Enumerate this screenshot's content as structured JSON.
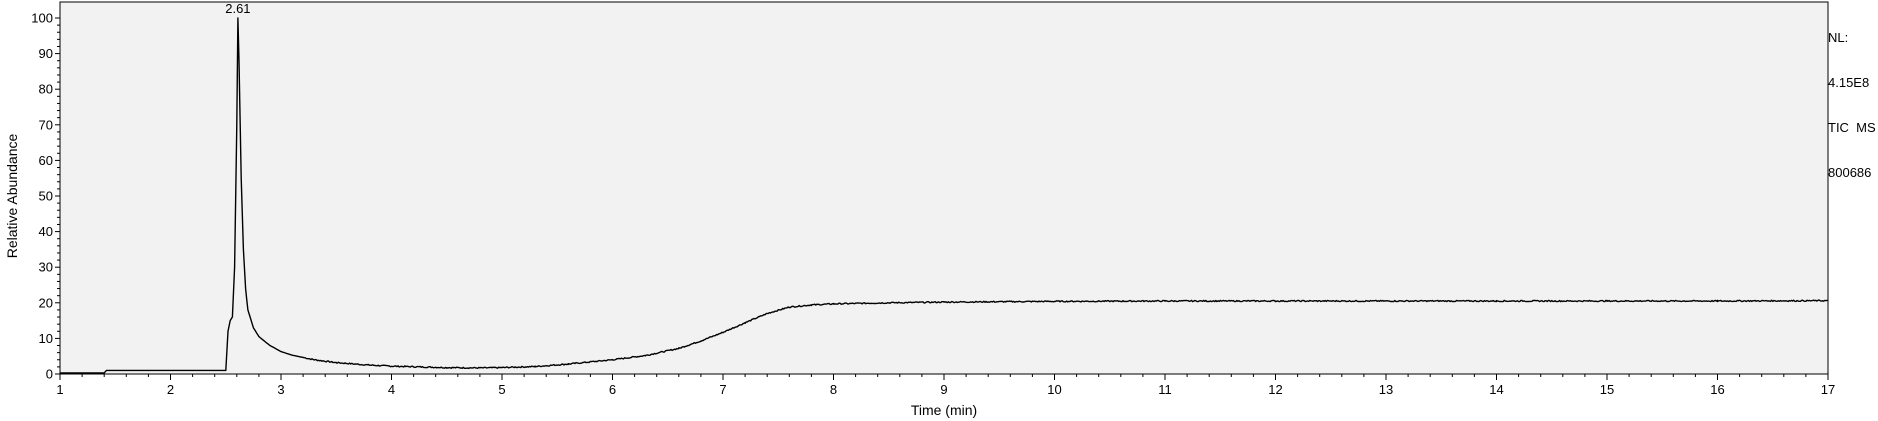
{
  "info": {
    "nl_label": "NL:",
    "nl_value": "4.15E8",
    "scan_filter": "TIC  MS",
    "sample": "800686"
  },
  "chart_data": {
    "type": "line",
    "title": "",
    "xlabel": "Time (min)",
    "ylabel": "Relative Abundance",
    "xlim": [
      1,
      17
    ],
    "ylim": [
      0,
      100
    ],
    "x_ticks": [
      1,
      2,
      3,
      4,
      5,
      6,
      7,
      8,
      9,
      10,
      11,
      12,
      13,
      14,
      15,
      16,
      17
    ],
    "y_ticks": [
      0,
      10,
      20,
      30,
      40,
      50,
      60,
      70,
      80,
      90,
      100
    ],
    "grid": false,
    "line_color": "#000000",
    "plot_background": "#f2f2f2",
    "annotations": [
      {
        "x": 2.61,
        "y": 100,
        "text": "2.61"
      }
    ],
    "series": [
      {
        "x": [
          1.0,
          1.4,
          1.42,
          1.45,
          2.5,
          2.52,
          2.54,
          2.56,
          2.58,
          2.6,
          2.61,
          2.62,
          2.64,
          2.66,
          2.68,
          2.7,
          2.75,
          2.8,
          2.9,
          3.0,
          3.1,
          3.3,
          3.5,
          3.8,
          4.0,
          4.5,
          4.8,
          5.0,
          5.3,
          5.6,
          6.0,
          6.3,
          6.6,
          6.8,
          7.0,
          7.2,
          7.4,
          7.6,
          7.8,
          8.0,
          8.5,
          9.0,
          10.0,
          11.0,
          12.0,
          13.0,
          14.0,
          15.0,
          16.0,
          17.0
        ],
        "y": [
          0.3,
          0.3,
          1.0,
          1.0,
          1.0,
          12.0,
          15.0,
          16.0,
          30.0,
          70.0,
          100.0,
          88.0,
          55.0,
          35.0,
          24.0,
          18.0,
          13.0,
          10.5,
          8.0,
          6.3,
          5.3,
          4.0,
          3.2,
          2.5,
          2.2,
          1.8,
          1.7,
          1.8,
          2.1,
          2.8,
          4.0,
          5.2,
          7.2,
          9.3,
          11.7,
          14.4,
          17.0,
          18.8,
          19.4,
          19.7,
          20.0,
          20.2,
          20.4,
          20.5,
          20.5,
          20.5,
          20.5,
          20.5,
          20.5,
          20.6
        ]
      }
    ]
  }
}
